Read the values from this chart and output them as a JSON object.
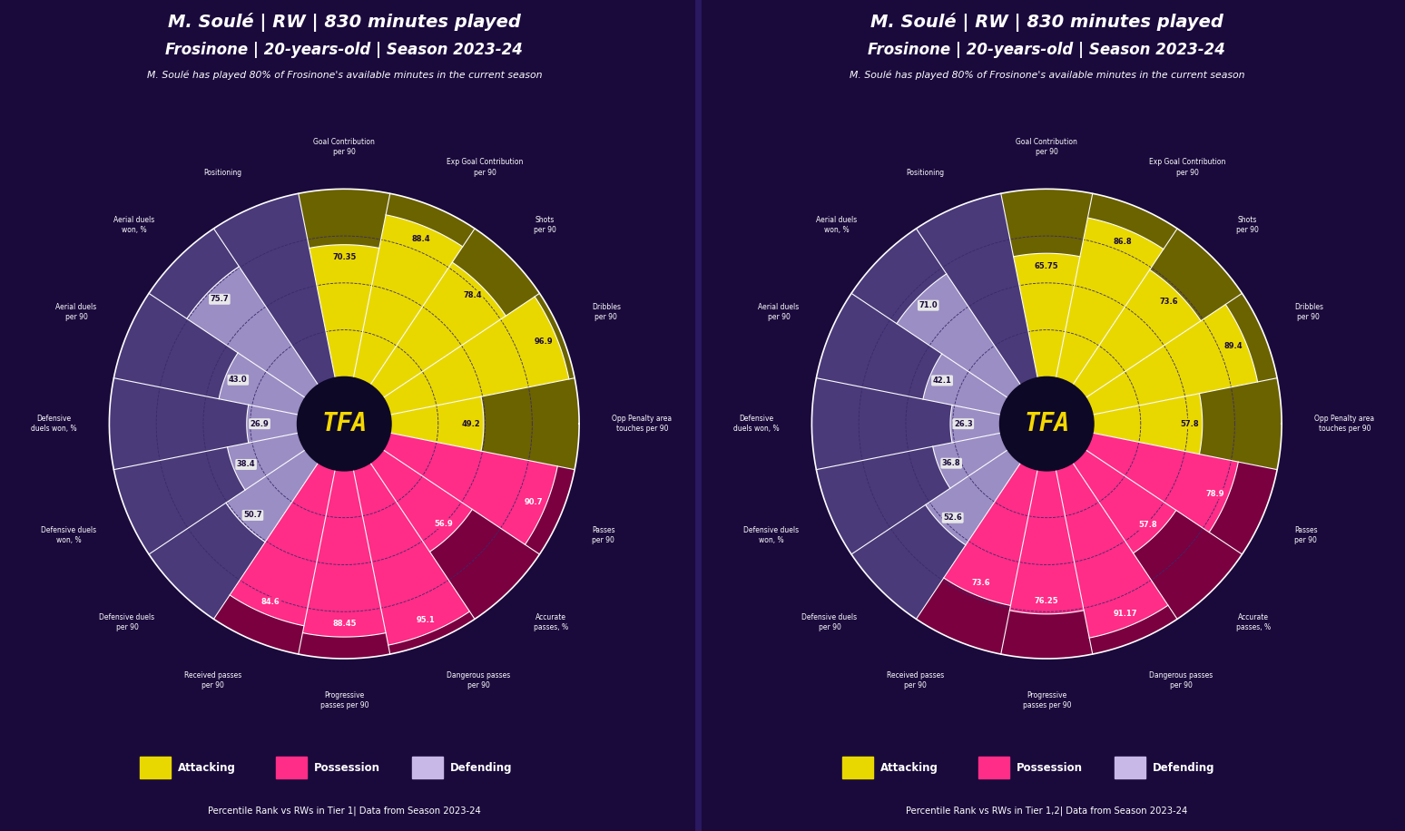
{
  "background_color": "#1a0a3c",
  "title_line1": "M. Soulé | RW | 830 minutes played",
  "title_line2": "Frosinone | 20-years-old | Season 2023-24",
  "subtitle": "M. Soulé has played 80% of Frosinone's available minutes in the current season",
  "center_text": "TFA",
  "center_text_color": "#f5d800",
  "chart1": {
    "footer": "Percentile Rank vs RWs in Tier 1| Data from Season 2023-24",
    "metrics": [
      {
        "label": "Goal Contribution\nper 90",
        "value": 70.35,
        "category": "attacking"
      },
      {
        "label": "Exp Goal Contribution\nper 90",
        "value": 88.4,
        "category": "attacking"
      },
      {
        "label": "Shots\nper 90",
        "value": 78.4,
        "category": "attacking"
      },
      {
        "label": "Dribbles\nper 90",
        "value": 96.9,
        "category": "attacking"
      },
      {
        "label": "Opp Penalty area\ntouches per 90",
        "value": 49.2,
        "category": "attacking"
      },
      {
        "label": "Passes\nper 90",
        "value": 90.7,
        "category": "possession"
      },
      {
        "label": "Accurate\npasses, %",
        "value": 56.9,
        "category": "possession"
      },
      {
        "label": "Dangerous passes\nper 90",
        "value": 95.1,
        "category": "possession"
      },
      {
        "label": "Progressive\npasses per 90",
        "value": 88.45,
        "category": "possession"
      },
      {
        "label": "Received passes\nper 90",
        "value": 84.6,
        "category": "possession"
      },
      {
        "label": "Defensive duels\nper 90",
        "value": 50.7,
        "category": "defending"
      },
      {
        "label": "Defensive duels\nwon, %",
        "value": 38.4,
        "category": "defending"
      },
      {
        "label": "Defensive\nduels won, %",
        "value": 26.9,
        "category": "defending"
      },
      {
        "label": "Aerial duels\nper 90",
        "value": 43.0,
        "category": "defending"
      },
      {
        "label": "Aerial duels\nwon, %",
        "value": 75.7,
        "category": "defending"
      },
      {
        "label": "Positioning",
        "value": 0,
        "category": "defending"
      }
    ]
  },
  "chart2": {
    "footer": "Percentile Rank vs RWs in Tier 1,2| Data from Season 2023-24",
    "metrics": [
      {
        "label": "Goal Contribution\nper 90",
        "value": 65.75,
        "category": "attacking"
      },
      {
        "label": "Exp Goal Contribution\nper 90",
        "value": 86.8,
        "category": "attacking"
      },
      {
        "label": "Shots\nper 90",
        "value": 73.6,
        "category": "attacking"
      },
      {
        "label": "Dribbles\nper 90",
        "value": 89.4,
        "category": "attacking"
      },
      {
        "label": "Opp Penalty area\ntouches per 90",
        "value": 57.8,
        "category": "attacking"
      },
      {
        "label": "Passes\nper 90",
        "value": 78.9,
        "category": "possession"
      },
      {
        "label": "Accurate\npasses, %",
        "value": 57.8,
        "category": "possession"
      },
      {
        "label": "Dangerous passes\nper 90",
        "value": 91.17,
        "category": "possession"
      },
      {
        "label": "Progressive\npasses per 90",
        "value": 76.25,
        "category": "possession"
      },
      {
        "label": "Received passes\nper 90",
        "value": 73.6,
        "category": "possession"
      },
      {
        "label": "Defensive duels\nper 90",
        "value": 52.6,
        "category": "defending"
      },
      {
        "label": "Defensive duels\nwon, %",
        "value": 36.8,
        "category": "defending"
      },
      {
        "label": "Defensive\nduels won, %",
        "value": 26.3,
        "category": "defending"
      },
      {
        "label": "Aerial duels\nper 90",
        "value": 42.1,
        "category": "defending"
      },
      {
        "label": "Aerial duels\nwon, %",
        "value": 71.0,
        "category": "defending"
      },
      {
        "label": "Positioning",
        "value": 0,
        "category": "defending"
      }
    ]
  },
  "colors": {
    "attacking": "#e8d800",
    "attacking_dark": "#6b6200",
    "possession": "#ff2d87",
    "possession_dark": "#7a0040",
    "defending": "#9b8ec4",
    "defending_dark": "#4a3a7a",
    "center_circle": "#0d0826",
    "background": "#1a0a3c",
    "grid": "#3a2a6a",
    "spoke": "#ffffff"
  },
  "legend": [
    {
      "label": "Attacking",
      "color": "#e8d800"
    },
    {
      "label": "Possession",
      "color": "#ff2d87"
    },
    {
      "label": "Defending",
      "color": "#c8b8e8"
    }
  ],
  "label_styles": {
    "attacking": {
      "bg": "#e8d800",
      "fg": "#1a0a3c"
    },
    "possession": {
      "bg": "#ff2d87",
      "fg": "#ffffff"
    },
    "defending": {
      "bg": "#e8e8e8",
      "fg": "#1a0a3c"
    }
  }
}
